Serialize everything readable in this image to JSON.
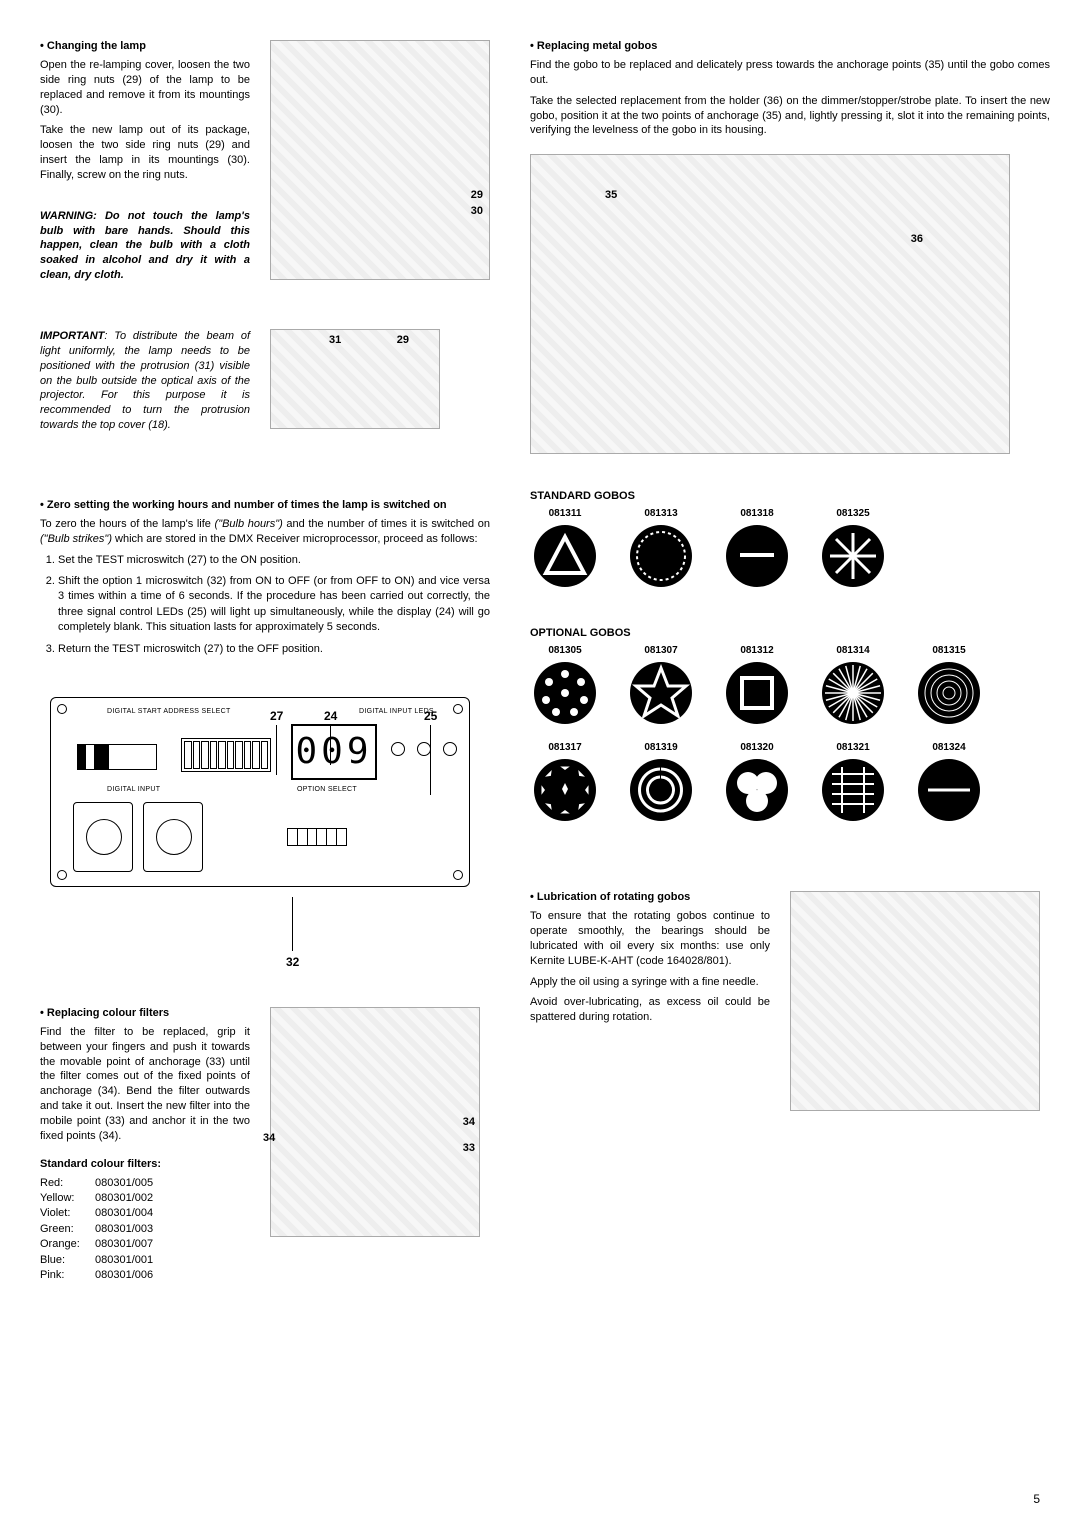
{
  "left": {
    "changing_lamp": {
      "head": "Changing the lamp",
      "p1": "Open the re-lamping cover, loosen the two side ring nuts (29) of the lamp to be replaced and remove it from its mountings (30).",
      "p2": "Take the new lamp out of its package, loosen the two side ring nuts (29) and insert the lamp in its mountings (30). Finally, screw on the ring nuts.",
      "warning": "WARNING: Do not touch the lamp's bulb with bare hands. Should this happen, clean the bulb with a cloth soaked in alcohol and dry it with a clean, dry cloth.",
      "important_label": "IMPORTANT",
      "important": ": To distribute the beam of light uniformly, the lamp needs to be positioned with the protrusion (31) visible on the bulb outside the optical axis of the projector. For this purpose it is recommended to turn the protrusion towards the top cover (18).",
      "fig1_labels": {
        "a": "29",
        "b": "30"
      },
      "fig2_labels": {
        "a": "31",
        "b": "29"
      }
    },
    "zero": {
      "head": "Zero setting the working hours and number of times the lamp is switched on",
      "intro_a": "To zero the hours of the lamp's life ",
      "intro_em1": "(\"Bulb hours\")",
      "intro_b": " and the number of times it is switched on ",
      "intro_em2": "(\"Bulb strikes\")",
      "intro_c": " which are stored in the DMX Receiver microprocessor, proceed as follows:",
      "li1": "Set the TEST microswitch (27) to the ON position.",
      "li2": "Shift the option 1 microswitch (32) from ON to OFF (or from OFF to ON) and vice versa 3 times within a time of 6 seconds. If the procedure has been carried out correctly, the three signal control LEDs (25) will light up simultaneously, while the display (24) will go completely blank. This situation lasts for approximately 5 seconds.",
      "li3": "Return the TEST microswitch (27) to the OFF position.",
      "panel": {
        "t1": "DIGITAL START ADDRESS SELECT",
        "t2": "DIGITAL INPUT LEDS",
        "t3": "DIGITAL INPUT",
        "t4": "OPTION SELECT",
        "display": "009",
        "callouts": {
          "c27": "27",
          "c24": "24",
          "c25": "25",
          "c32": "32"
        }
      }
    },
    "filters": {
      "head": "Replacing colour filters",
      "p1": "Find the filter to be replaced, grip it between your fingers and push it towards the movable point of anchorage (33) until the filter comes out of the fixed points of anchorage (34). Bend the filter outwards and take it out. Insert the new filter into the mobile point (33) and anchor it in the two fixed points (34).",
      "table_head": "Standard colour filters:",
      "filters": [
        {
          "name": "Red:",
          "code": "080301/005"
        },
        {
          "name": "Yellow:",
          "code": "080301/002"
        },
        {
          "name": "Violet:",
          "code": "080301/004"
        },
        {
          "name": "Green:",
          "code": "080301/003"
        },
        {
          "name": "Orange:",
          "code": "080301/007"
        },
        {
          "name": "Blue:",
          "code": "080301/001"
        },
        {
          "name": "Pink:",
          "code": "080301/006"
        }
      ],
      "fig_labels": {
        "a": "34",
        "b": "34",
        "c": "33"
      }
    }
  },
  "right": {
    "metal_gobos": {
      "head": "Replacing metal gobos",
      "p1": "Find the gobo to be replaced and delicately press towards the anchorage points (35) until the gobo comes out.",
      "p2": "Take the selected replacement from the holder (36) on the dimmer/stopper/strobe plate. To insert the new gobo, position it at the two points of anchorage (35) and, lightly pressing it, slot it into the remaining points, verifying the levelness of the gobo in its housing.",
      "fig_labels": {
        "a": "35",
        "b": "36"
      }
    },
    "std_gobos": {
      "head": "STANDARD GOBOS",
      "items": [
        "081311",
        "081313",
        "081318",
        "081325"
      ]
    },
    "opt_gobos": {
      "head": "OPTIONAL GOBOS",
      "items": [
        "081305",
        "081307",
        "081312",
        "081314",
        "081315",
        "081317",
        "081319",
        "081320",
        "081321",
        "081324"
      ]
    },
    "lube": {
      "head": "Lubrication of rotating gobos",
      "p1": "To ensure that the rotating gobos continue to operate smoothly, the bearings should be lubricated with oil every six months: use only Kernite LUBE-K-AHT (code 164028/801).",
      "p2": "Apply the oil using a syringe with a fine needle.",
      "p3": "Avoid over-lubricating, as excess oil could be spattered during rotation."
    }
  },
  "page_number": "5"
}
